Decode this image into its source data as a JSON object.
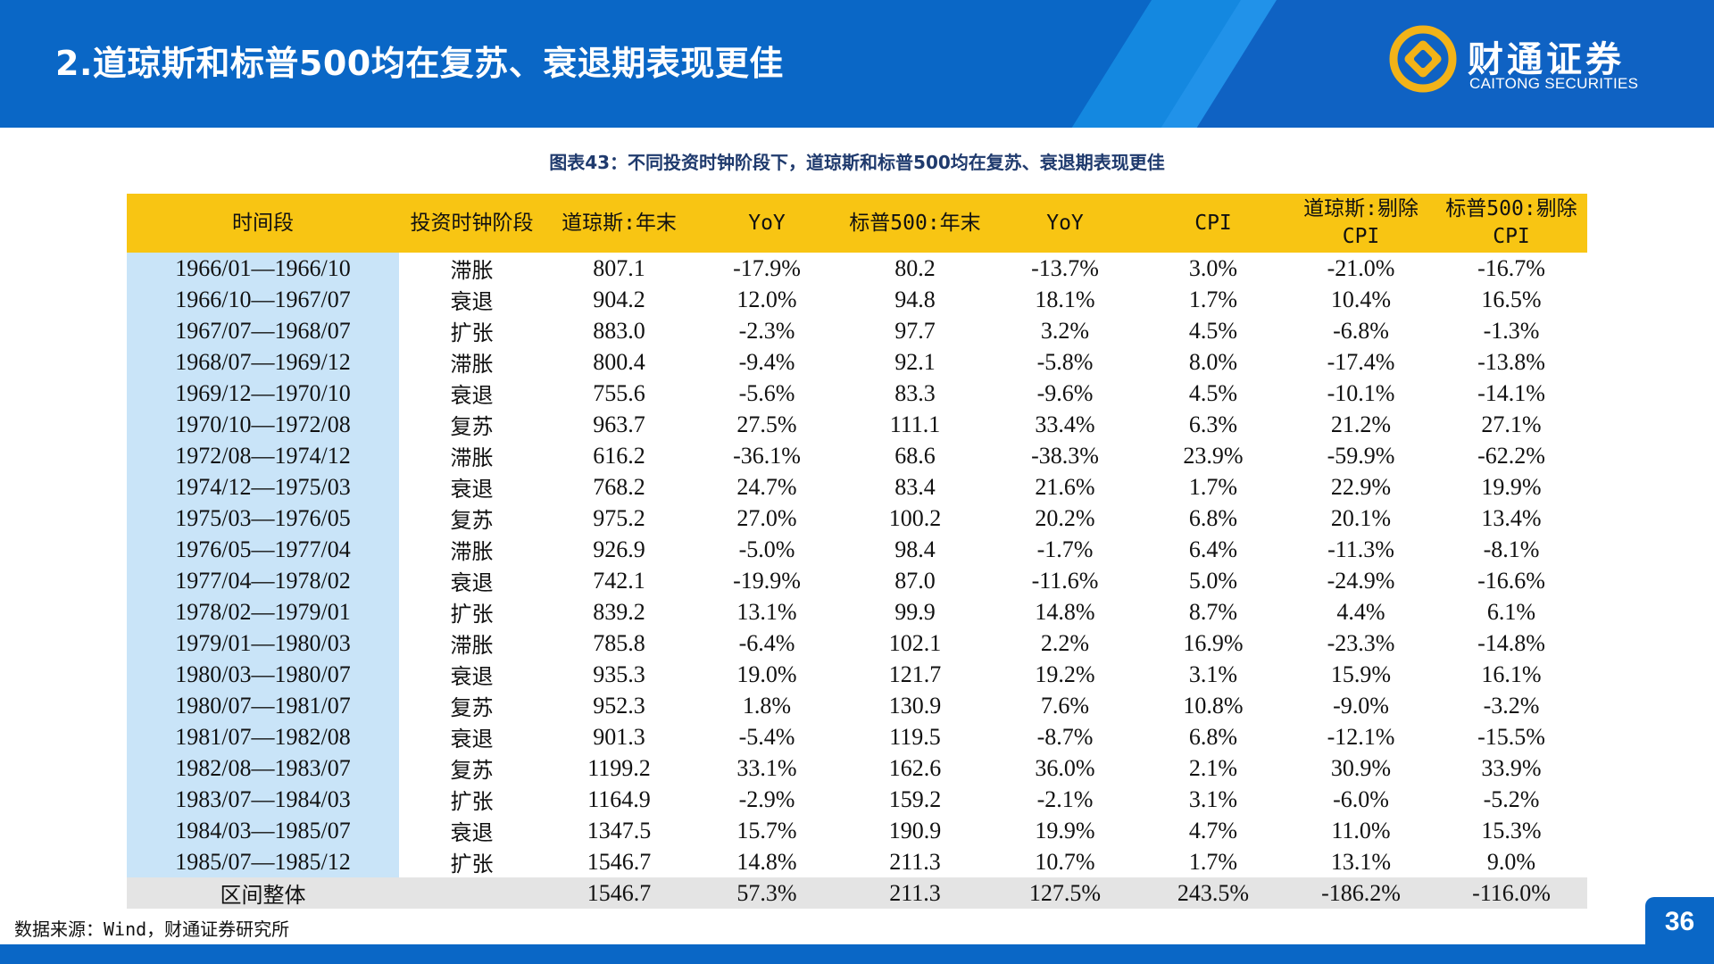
{
  "slide": {
    "title": "2.道琼斯和标普500均在复苏、衰退期表现更佳",
    "page_number": "36"
  },
  "logo": {
    "cn_name": "财通证券",
    "en_name": "CAITONG SECURITIES"
  },
  "colors": {
    "header_blue": "#0a67c6",
    "table_header_yellow": "#f8c513",
    "period_column_blue": "#c9e4f8",
    "total_row_gray": "#e4e4e4",
    "logo_gold": "#f2b318"
  },
  "caption": "图表43：不同投资时钟阶段下，道琼斯和标普500均在复苏、衰退期表现更佳",
  "table": {
    "headers": [
      "时间段",
      "投资时钟阶段",
      "道琼斯:年末",
      "YoY",
      "标普500:年末",
      "YoY",
      "CPI",
      "道琼斯:剔除CPI",
      "标普500:剔除CPI"
    ],
    "rows": [
      [
        "1966/01—1966/10",
        "滞胀",
        "807.1",
        "-17.9%",
        "80.2",
        "-13.7%",
        "3.0%",
        "-21.0%",
        "-16.7%"
      ],
      [
        "1966/10—1967/07",
        "衰退",
        "904.2",
        "12.0%",
        "94.8",
        "18.1%",
        "1.7%",
        "10.4%",
        "16.5%"
      ],
      [
        "1967/07—1968/07",
        "扩张",
        "883.0",
        "-2.3%",
        "97.7",
        "3.2%",
        "4.5%",
        "-6.8%",
        "-1.3%"
      ],
      [
        "1968/07—1969/12",
        "滞胀",
        "800.4",
        "-9.4%",
        "92.1",
        "-5.8%",
        "8.0%",
        "-17.4%",
        "-13.8%"
      ],
      [
        "1969/12—1970/10",
        "衰退",
        "755.6",
        "-5.6%",
        "83.3",
        "-9.6%",
        "4.5%",
        "-10.1%",
        "-14.1%"
      ],
      [
        "1970/10—1972/08",
        "复苏",
        "963.7",
        "27.5%",
        "111.1",
        "33.4%",
        "6.3%",
        "21.2%",
        "27.1%"
      ],
      [
        "1972/08—1974/12",
        "滞胀",
        "616.2",
        "-36.1%",
        "68.6",
        "-38.3%",
        "23.9%",
        "-59.9%",
        "-62.2%"
      ],
      [
        "1974/12—1975/03",
        "衰退",
        "768.2",
        "24.7%",
        "83.4",
        "21.6%",
        "1.7%",
        "22.9%",
        "19.9%"
      ],
      [
        "1975/03—1976/05",
        "复苏",
        "975.2",
        "27.0%",
        "100.2",
        "20.2%",
        "6.8%",
        "20.1%",
        "13.4%"
      ],
      [
        "1976/05—1977/04",
        "滞胀",
        "926.9",
        "-5.0%",
        "98.4",
        "-1.7%",
        "6.4%",
        "-11.3%",
        "-8.1%"
      ],
      [
        "1977/04—1978/02",
        "衰退",
        "742.1",
        "-19.9%",
        "87.0",
        "-11.6%",
        "5.0%",
        "-24.9%",
        "-16.6%"
      ],
      [
        "1978/02—1979/01",
        "扩张",
        "839.2",
        "13.1%",
        "99.9",
        "14.8%",
        "8.7%",
        "4.4%",
        "6.1%"
      ],
      [
        "1979/01—1980/03",
        "滞胀",
        "785.8",
        "-6.4%",
        "102.1",
        "2.2%",
        "16.9%",
        "-23.3%",
        "-14.8%"
      ],
      [
        "1980/03—1980/07",
        "衰退",
        "935.3",
        "19.0%",
        "121.7",
        "19.2%",
        "3.1%",
        "15.9%",
        "16.1%"
      ],
      [
        "1980/07—1981/07",
        "复苏",
        "952.3",
        "1.8%",
        "130.9",
        "7.6%",
        "10.8%",
        "-9.0%",
        "-3.2%"
      ],
      [
        "1981/07—1982/08",
        "衰退",
        "901.3",
        "-5.4%",
        "119.5",
        "-8.7%",
        "6.8%",
        "-12.1%",
        "-15.5%"
      ],
      [
        "1982/08—1983/07",
        "复苏",
        "1199.2",
        "33.1%",
        "162.6",
        "36.0%",
        "2.1%",
        "30.9%",
        "33.9%"
      ],
      [
        "1983/07—1984/03",
        "扩张",
        "1164.9",
        "-2.9%",
        "159.2",
        "-2.1%",
        "3.1%",
        "-6.0%",
        "-5.2%"
      ],
      [
        "1984/03—1985/07",
        "衰退",
        "1347.5",
        "15.7%",
        "190.9",
        "19.9%",
        "4.7%",
        "11.0%",
        "15.3%"
      ],
      [
        "1985/07—1985/12",
        "扩张",
        "1546.7",
        "14.8%",
        "211.3",
        "10.7%",
        "1.7%",
        "13.1%",
        "9.0%"
      ]
    ],
    "total": [
      "区间整体",
      "",
      "1546.7",
      "57.3%",
      "211.3",
      "127.5%",
      "243.5%",
      "-186.2%",
      "-116.0%"
    ]
  },
  "source": "数据来源：Wind，财通证券研究所"
}
